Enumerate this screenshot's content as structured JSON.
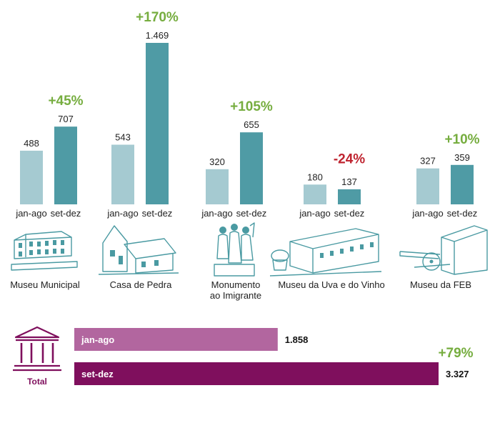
{
  "chart_data": [
    {
      "type": "bar",
      "series_labels": [
        "jan-ago",
        "set-dez"
      ],
      "groups": [
        {
          "name": "Museu Municipal",
          "name_lines": [
            "Museu Municipal"
          ],
          "values": [
            488,
            707
          ],
          "value_labels": [
            "488",
            "707"
          ],
          "change": "+45%",
          "change_sign": "up",
          "icon": "museu-municipal-building-icon"
        },
        {
          "name": "Casa de Pedra",
          "name_lines": [
            "Casa de Pedra"
          ],
          "values": [
            543,
            1469
          ],
          "value_labels": [
            "543",
            "1.469"
          ],
          "change": "+170%",
          "change_sign": "up",
          "icon": "casa-de-pedra-house-icon"
        },
        {
          "name": "Monumento ao Imigrante",
          "name_lines": [
            "Monumento",
            "ao Imigrante"
          ],
          "values": [
            320,
            655
          ],
          "value_labels": [
            "320",
            "655"
          ],
          "change": "+105%",
          "change_sign": "up",
          "icon": "monumento-statue-icon"
        },
        {
          "name": "Museu da Uva e do Vinho",
          "name_lines": [
            "Museu da Uva e do Vinho"
          ],
          "values": [
            180,
            137
          ],
          "value_labels": [
            "180",
            "137"
          ],
          "change": "-24%",
          "change_sign": "down",
          "icon": "museu-da-uva-building-icon"
        },
        {
          "name": "Museu da FEB",
          "name_lines": [
            "Museu da FEB"
          ],
          "values": [
            327,
            359
          ],
          "value_labels": [
            "327",
            "359"
          ],
          "change": "+10%",
          "change_sign": "up",
          "icon": "museu-da-feb-cannon-icon"
        }
      ]
    },
    {
      "type": "bar",
      "orientation": "horizontal",
      "title": "Total",
      "icon": "museum-columns-icon",
      "categories": [
        "jan-ago",
        "set-dez"
      ],
      "values": [
        1858,
        3327
      ],
      "value_labels": [
        "1.858",
        "3.327"
      ],
      "change": "+79%"
    }
  ],
  "colors": {
    "jan_ago": "#a5cad1",
    "set_dez": "#4f9ba5",
    "increase": "#76ad3f",
    "decrease": "#bf2430",
    "total_jan_ago": "#b2669f",
    "total_set_dez": "#7f0f5d",
    "illustration": "#4a9aa2"
  }
}
